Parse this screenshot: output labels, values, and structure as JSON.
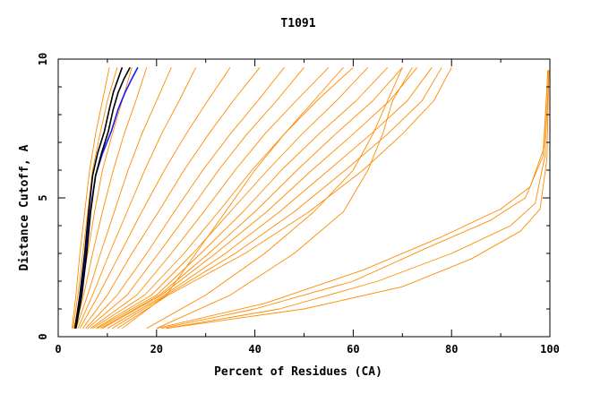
{
  "chart_data": {
    "type": "line",
    "title": "T1091",
    "xlabel": "Percent of Residues (CA)",
    "ylabel": "Distance Cutoff, A",
    "xlim": [
      0,
      100
    ],
    "ylim": [
      0,
      10
    ],
    "x_ticks": [
      "0",
      "20",
      "40",
      "60",
      "80",
      "100"
    ],
    "y_ticks": [
      "0",
      "5",
      "10"
    ],
    "grid": false,
    "colors": {
      "orange": "#ff8c00",
      "black": "#000000",
      "blue": "#1a1aff"
    },
    "series": [
      {
        "color": "black",
        "x": [
          3.6,
          4.8,
          5.8,
          6.6,
          7.6,
          8.8,
          10.2,
          11.2,
          12.2,
          13.4,
          14.6
        ],
        "y": [
          0.3,
          1.5,
          3.0,
          4.5,
          5.8,
          6.6,
          7.4,
          8.2,
          8.8,
          9.3,
          9.7
        ]
      },
      {
        "color": "black",
        "x": [
          3.4,
          4.4,
          5.4,
          6.2,
          7.0,
          8.0,
          9.4,
          10.4,
          11.2,
          12.2,
          13.0
        ],
        "y": [
          0.3,
          1.5,
          3.0,
          4.5,
          5.8,
          6.6,
          7.4,
          8.2,
          8.8,
          9.3,
          9.7
        ]
      },
      {
        "color": "blue",
        "x": [
          3.5,
          4.6,
          5.6,
          6.5,
          7.6,
          9.0,
          10.8,
          12.2,
          13.6,
          15.0,
          16.2
        ],
        "y": [
          0.3,
          1.5,
          3.0,
          4.5,
          5.8,
          6.6,
          7.4,
          8.2,
          8.8,
          9.3,
          9.7
        ]
      },
      {
        "color": "orange",
        "x": [
          3.0,
          4.0,
          5.0,
          6.0,
          7.0,
          8.5,
          10.0,
          12.0
        ],
        "y": [
          0.3,
          1.5,
          3.0,
          4.5,
          6.0,
          7.3,
          8.5,
          9.7
        ]
      },
      {
        "color": "orange",
        "x": [
          3.2,
          4.6,
          6.0,
          7.4,
          9.0,
          11.0,
          13.0,
          15.0
        ],
        "y": [
          0.3,
          1.5,
          3.0,
          4.5,
          6.0,
          7.3,
          8.5,
          9.7
        ]
      },
      {
        "color": "orange",
        "x": [
          2.8,
          3.6,
          4.4,
          5.4,
          6.4,
          7.6,
          9.0,
          10.4
        ],
        "y": [
          0.3,
          1.5,
          3.0,
          4.5,
          6.0,
          7.3,
          8.5,
          9.7
        ]
      },
      {
        "color": "orange",
        "x": [
          3.4,
          5.2,
          7.0,
          9.0,
          11.2,
          13.4,
          15.8,
          18.0
        ],
        "y": [
          0.3,
          1.5,
          3.0,
          4.5,
          6.0,
          7.3,
          8.5,
          9.7
        ]
      },
      {
        "color": "orange",
        "x": [
          3.6,
          6.0,
          8.6,
          11.4,
          14.2,
          17.0,
          20.0,
          23.0
        ],
        "y": [
          0.3,
          1.5,
          3.0,
          4.5,
          6.0,
          7.3,
          8.5,
          9.7
        ]
      },
      {
        "color": "orange",
        "x": [
          4.0,
          7.0,
          10.4,
          14.0,
          17.6,
          21.0,
          24.6,
          28.0
        ],
        "y": [
          0.3,
          1.5,
          3.0,
          4.5,
          6.0,
          7.3,
          8.5,
          9.7
        ]
      },
      {
        "color": "orange",
        "x": [
          4.4,
          8.2,
          12.6,
          17.0,
          21.6,
          26.0,
          30.4,
          35.0
        ],
        "y": [
          0.3,
          1.5,
          3.0,
          4.5,
          6.0,
          7.3,
          8.5,
          9.7
        ]
      },
      {
        "color": "orange",
        "x": [
          5.0,
          10.0,
          15.0,
          20.4,
          25.6,
          30.6,
          35.6,
          41.0
        ],
        "y": [
          0.3,
          1.5,
          3.0,
          4.5,
          6.0,
          7.3,
          8.5,
          9.7
        ]
      },
      {
        "color": "orange",
        "x": [
          5.6,
          12.0,
          18.0,
          23.6,
          29.4,
          35.0,
          40.6,
          46.0
        ],
        "y": [
          0.3,
          1.5,
          3.0,
          4.5,
          6.0,
          7.3,
          8.5,
          9.7
        ]
      },
      {
        "color": "orange",
        "x": [
          6.0,
          14.0,
          20.4,
          26.6,
          32.6,
          38.4,
          44.4,
          50.0
        ],
        "y": [
          0.3,
          1.5,
          3.0,
          4.5,
          6.0,
          7.3,
          8.5,
          9.7
        ]
      },
      {
        "color": "orange",
        "x": [
          6.6,
          16.0,
          23.0,
          29.6,
          36.0,
          42.0,
          48.4,
          55.0
        ],
        "y": [
          0.3,
          1.5,
          3.0,
          4.5,
          6.0,
          7.3,
          8.5,
          9.7
        ]
      },
      {
        "color": "orange",
        "x": [
          7.0,
          17.6,
          25.6,
          32.6,
          39.4,
          46.0,
          52.6,
          60.0
        ],
        "y": [
          0.3,
          1.5,
          3.0,
          4.5,
          6.0,
          7.3,
          8.5,
          9.7
        ]
      },
      {
        "color": "orange",
        "x": [
          7.6,
          19.0,
          27.4,
          35.0,
          42.6,
          49.6,
          56.6,
          63.0
        ],
        "y": [
          0.3,
          1.5,
          3.0,
          4.5,
          6.0,
          7.3,
          8.5,
          9.7
        ]
      },
      {
        "color": "orange",
        "x": [
          8.0,
          20.0,
          29.0,
          37.6,
          45.4,
          53.0,
          60.6,
          67.0
        ],
        "y": [
          0.3,
          1.5,
          3.0,
          4.5,
          6.0,
          7.3,
          8.5,
          9.7
        ]
      },
      {
        "color": "orange",
        "x": [
          8.6,
          20.6,
          30.6,
          40.0,
          48.6,
          56.4,
          64.0,
          70.0
        ],
        "y": [
          0.3,
          1.5,
          3.0,
          4.5,
          6.0,
          7.3,
          8.5,
          9.7
        ]
      },
      {
        "color": "orange",
        "x": [
          9.0,
          21.0,
          32.0,
          42.4,
          51.6,
          60.0,
          67.4,
          73.0
        ],
        "y": [
          0.3,
          1.5,
          3.0,
          4.5,
          6.0,
          7.3,
          8.5,
          9.7
        ]
      },
      {
        "color": "orange",
        "x": [
          10.0,
          21.6,
          34.0,
          45.0,
          55.0,
          63.6,
          71.0,
          76.0
        ],
        "y": [
          0.3,
          1.5,
          3.0,
          4.5,
          6.0,
          7.3,
          8.5,
          9.7
        ]
      },
      {
        "color": "orange",
        "x": [
          11.0,
          22.0,
          36.0,
          48.0,
          58.4,
          67.0,
          74.0,
          78.0
        ],
        "y": [
          0.3,
          1.5,
          3.0,
          4.5,
          6.0,
          7.3,
          8.5,
          9.7
        ]
      },
      {
        "color": "orange",
        "x": [
          12.0,
          22.4,
          38.0,
          51.0,
          62.0,
          70.0,
          76.4,
          80.0
        ],
        "y": [
          0.3,
          1.5,
          3.0,
          4.5,
          6.0,
          7.3,
          8.5,
          9.7
        ]
      },
      {
        "color": "orange",
        "x": [
          18.0,
          30.0,
          42.0,
          52.0,
          60.0,
          64.0,
          67.0,
          70.0
        ],
        "y": [
          0.3,
          1.5,
          3.0,
          4.5,
          6.0,
          7.3,
          8.5,
          9.7
        ]
      },
      {
        "color": "orange",
        "x": [
          20.0,
          35.0,
          48.0,
          58.0,
          63.0,
          66.0,
          68.0,
          72.0
        ],
        "y": [
          0.3,
          1.5,
          3.0,
          4.5,
          6.0,
          7.3,
          8.5,
          9.7
        ]
      },
      {
        "color": "orange",
        "x": [
          13.0,
          22.0,
          28.0,
          34.0,
          40.0,
          46.0,
          52.0,
          58.0
        ],
        "y": [
          0.3,
          1.5,
          3.0,
          4.5,
          6.0,
          7.3,
          8.5,
          9.7
        ]
      },
      {
        "color": "orange",
        "x": [
          21.0,
          40.0,
          60.0,
          75.0,
          88.0,
          95.0,
          98.6,
          99.6
        ],
        "y": [
          0.3,
          1.0,
          2.0,
          3.2,
          4.2,
          5.0,
          6.5,
          9.6
        ]
      },
      {
        "color": "orange",
        "x": [
          22.0,
          45.0,
          65.0,
          80.0,
          92.0,
          97.0,
          99.0,
          99.8
        ],
        "y": [
          0.3,
          1.0,
          2.0,
          3.0,
          4.0,
          4.8,
          6.5,
          9.6
        ]
      },
      {
        "color": "orange",
        "x": [
          20.0,
          42.0,
          62.0,
          78.0,
          90.0,
          96.0,
          98.8,
          99.6
        ],
        "y": [
          0.3,
          1.2,
          2.4,
          3.6,
          4.6,
          5.4,
          6.8,
          9.6
        ]
      },
      {
        "color": "orange",
        "x": [
          22.0,
          50.0,
          70.0,
          84.0,
          94.0,
          98.0,
          99.4,
          99.8
        ],
        "y": [
          0.3,
          1.0,
          1.8,
          2.8,
          3.8,
          4.6,
          6.4,
          9.6
        ]
      }
    ]
  }
}
